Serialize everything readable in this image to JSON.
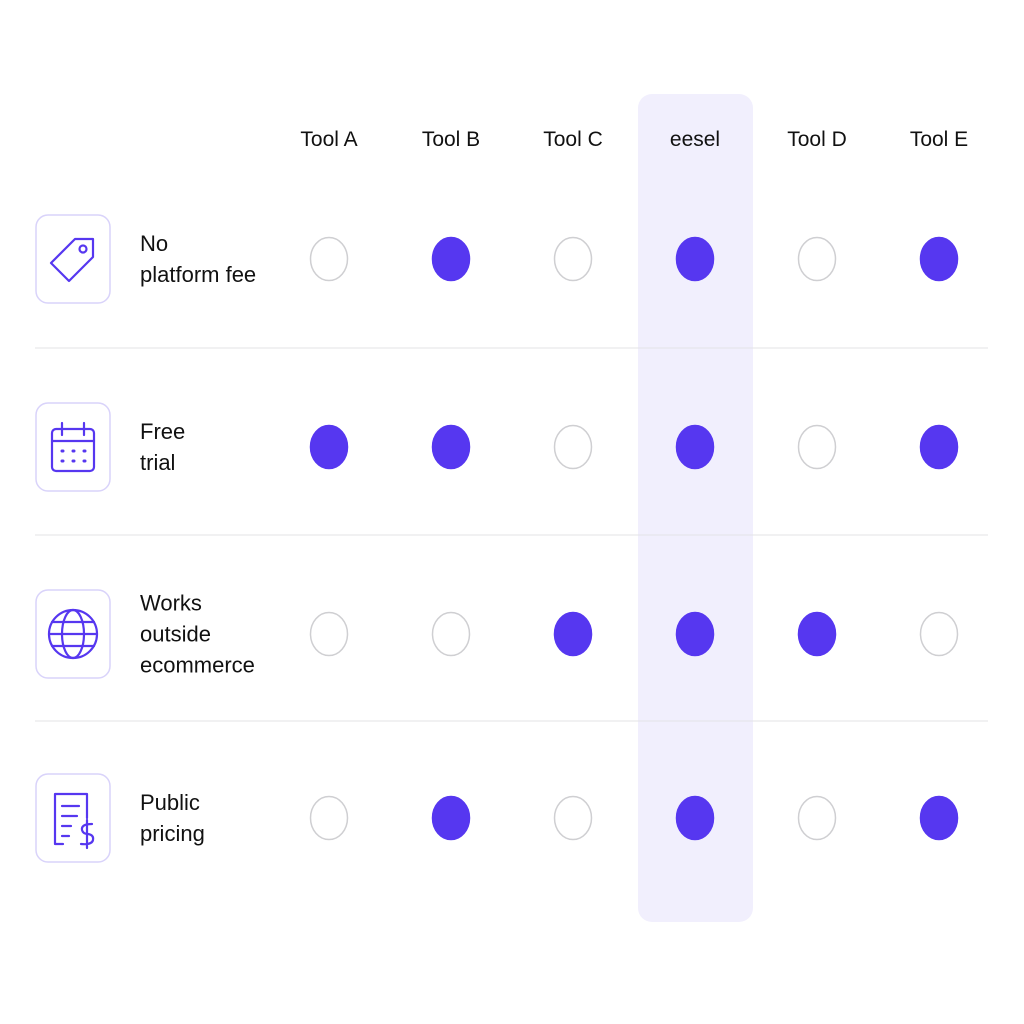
{
  "columns": [
    "Tool A",
    "Tool B",
    "Tool C",
    "eesel",
    "Tool D",
    "Tool E"
  ],
  "highlight": "eesel",
  "accent": "#5637f0",
  "rows": [
    {
      "label": "No\nplatform fee",
      "values": [
        false,
        true,
        false,
        true,
        false,
        true
      ]
    },
    {
      "label": "Free\ntrial",
      "values": [
        true,
        true,
        false,
        true,
        false,
        true
      ]
    },
    {
      "label": "Works\noutside\necommerce",
      "values": [
        false,
        false,
        true,
        true,
        true,
        false
      ]
    },
    {
      "label": "Public\npricing",
      "values": [
        false,
        true,
        false,
        true,
        false,
        true
      ]
    }
  ]
}
